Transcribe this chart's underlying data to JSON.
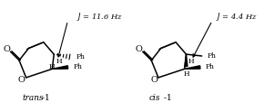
{
  "bg_color": "#ffffff",
  "left_label": "J = 11.6 Hz",
  "right_label": "J = 4.4 Hz",
  "left_struct_label_italic": "trans",
  "right_struct_label_italic": "cis",
  "compound_num": "1"
}
